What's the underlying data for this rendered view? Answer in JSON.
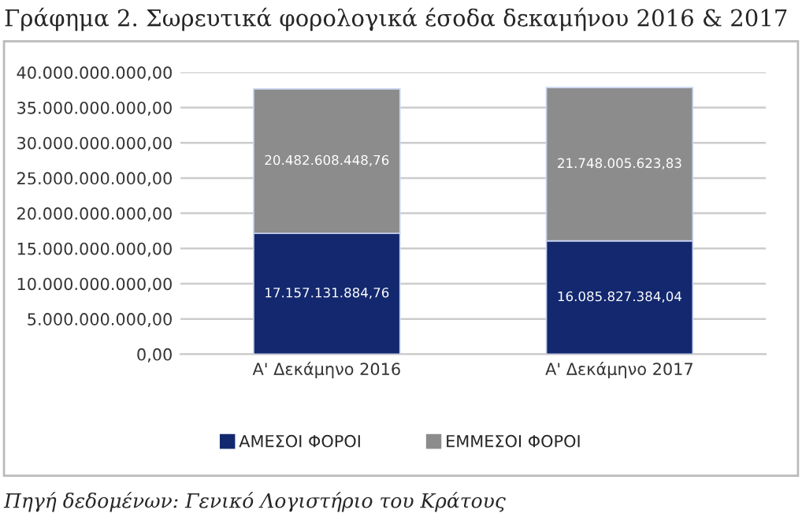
{
  "chart_data": {
    "type": "bar",
    "stacked": true,
    "title": "Γράφημα 2. Σωρευτικά φορολογικά έσοδα δεκαμήνου 2016 & 2017",
    "categories": [
      "Α' Δεκάμηνο 2016",
      "Α' Δεκάμηνο 2017"
    ],
    "series": [
      {
        "name": "ΑΜΕΣΟΙ ΦΟΡΟΙ",
        "color": "#13286e",
        "values": [
          17157131884.76,
          16085827384.04
        ],
        "value_labels": [
          "17.157.131.884,76",
          "16.085.827.384,04"
        ]
      },
      {
        "name": "ΕΜΜΕΣΟΙ ΦΟΡΟΙ",
        "color": "#8c8c8c",
        "values": [
          20482608448.76,
          21748005623.83
        ],
        "value_labels": [
          "20.482.608.448,76",
          "21.748.005.623,83"
        ]
      }
    ],
    "ylim": [
      0,
      40000000000
    ],
    "yticks": [
      {
        "value": 0,
        "label": "0,00"
      },
      {
        "value": 5000000000,
        "label": "5.000.000.000,00"
      },
      {
        "value": 10000000000,
        "label": "10.000.000.000,00"
      },
      {
        "value": 15000000000,
        "label": "15.000.000.000,00"
      },
      {
        "value": 20000000000,
        "label": "20.000.000.000,00"
      },
      {
        "value": 25000000000,
        "label": "25.000.000.000,00"
      },
      {
        "value": 30000000000,
        "label": "30.000.000.000,00"
      },
      {
        "value": 35000000000,
        "label": "35.000.000.000,00"
      },
      {
        "value": 40000000000,
        "label": "40.000.000.000,00"
      }
    ],
    "grid": "y",
    "legend": "bottom",
    "annotations": [
      "Πηγή δεδομένων: Γενικό Λογιστήριο του Κράτους"
    ]
  }
}
